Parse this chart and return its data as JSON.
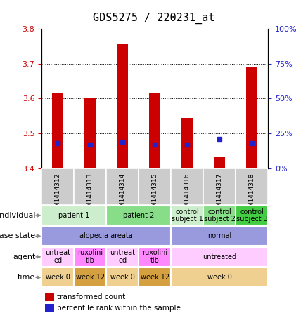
{
  "title": "GDS5275 / 220231_at",
  "samples": [
    "GSM1414312",
    "GSM1414313",
    "GSM1414314",
    "GSM1414315",
    "GSM1414316",
    "GSM1414317",
    "GSM1414318"
  ],
  "transformed_counts": [
    3.615,
    3.6,
    3.755,
    3.615,
    3.545,
    3.435,
    3.69
  ],
  "percentile_ranks": [
    18,
    17,
    19,
    17,
    17,
    21,
    18
  ],
  "bar_bottom": 3.4,
  "ylim_left": [
    3.4,
    3.8
  ],
  "ylim_right": [
    0,
    100
  ],
  "yticks_left": [
    3.4,
    3.5,
    3.6,
    3.7,
    3.8
  ],
  "yticks_right": [
    0,
    25,
    50,
    75,
    100
  ],
  "bar_color": "#cc0000",
  "dot_color": "#2222cc",
  "plot_bg": "#ffffff",
  "title_fontsize": 11,
  "left_tick_color": "#cc0000",
  "right_tick_color": "#2222cc",
  "individual_row": {
    "label": "individual",
    "cells": [
      {
        "text": "patient 1",
        "colspan": 2,
        "color": "#cceecc"
      },
      {
        "text": "patient 2",
        "colspan": 2,
        "color": "#88dd88"
      },
      {
        "text": "control\nsubject 1",
        "colspan": 1,
        "color": "#cceecc"
      },
      {
        "text": "control\nsubject 2",
        "colspan": 1,
        "color": "#88dd88"
      },
      {
        "text": "control\nsubject 3",
        "colspan": 1,
        "color": "#44cc44"
      }
    ]
  },
  "disease_state_row": {
    "label": "disease state",
    "cells": [
      {
        "text": "alopecia areata",
        "colspan": 4,
        "color": "#9999dd"
      },
      {
        "text": "normal",
        "colspan": 3,
        "color": "#9999dd"
      }
    ]
  },
  "agent_row": {
    "label": "agent",
    "cells": [
      {
        "text": "untreat\ned",
        "colspan": 1,
        "color": "#ffccff"
      },
      {
        "text": "ruxolini\ntib",
        "colspan": 1,
        "color": "#ff88ff"
      },
      {
        "text": "untreat\ned",
        "colspan": 1,
        "color": "#ffccff"
      },
      {
        "text": "ruxolini\ntib",
        "colspan": 1,
        "color": "#ff88ff"
      },
      {
        "text": "untreated",
        "colspan": 3,
        "color": "#ffccff"
      }
    ]
  },
  "time_row": {
    "label": "time",
    "cells": [
      {
        "text": "week 0",
        "colspan": 1,
        "color": "#f0d090"
      },
      {
        "text": "week 12",
        "colspan": 1,
        "color": "#d4a040"
      },
      {
        "text": "week 0",
        "colspan": 1,
        "color": "#f0d090"
      },
      {
        "text": "week 12",
        "colspan": 1,
        "color": "#d4a040"
      },
      {
        "text": "week 0",
        "colspan": 3,
        "color": "#f0d090"
      }
    ]
  },
  "sample_header_color": "#cccccc",
  "label_fontsize": 8,
  "cell_fontsize": 7,
  "xtick_fontsize": 6.5,
  "bar_width": 0.35
}
